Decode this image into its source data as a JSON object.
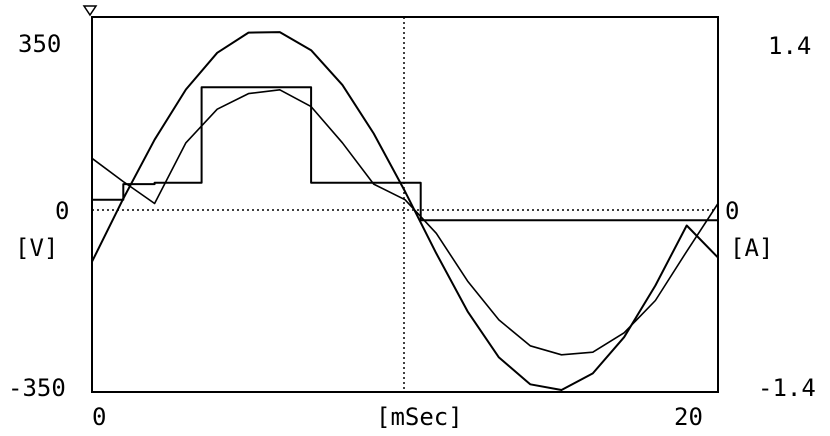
{
  "chart_data": {
    "type": "line",
    "xlabel": "[mSec]",
    "y_left_label": "[V]",
    "y_right_label": "[A]",
    "xlim": [
      0,
      20
    ],
    "ylim_left": [
      -350,
      350
    ],
    "ylim_right": [
      -1.4,
      1.4
    ],
    "x_tick_labels": [
      "0",
      "20"
    ],
    "y_left_tick_labels": [
      "350",
      "0",
      "-350"
    ],
    "y_right_tick_labels": [
      "1.4",
      "0",
      "-1.4"
    ],
    "grid": "dotted zero line and vertical marker at 10 mSec",
    "series": [
      {
        "axis": "left",
        "x": [
          0,
          1,
          2,
          3,
          4,
          5,
          6,
          7,
          8,
          9,
          10,
          11,
          12,
          13,
          14,
          15,
          16,
          17,
          18,
          19,
          20
        ],
        "y": [
          -100,
          22,
          136,
          233,
          304,
          343,
          344,
          309,
          242,
          148,
          36,
          -84,
          -196,
          -285,
          -337,
          -348,
          -316,
          -246,
          -146,
          -30,
          -92
        ]
      },
      {
        "axis": "right",
        "x": [
          0,
          0.5,
          1,
          2,
          3,
          3.5,
          6.5,
          7,
          10,
          10.5,
          11,
          12,
          13,
          14,
          15,
          16,
          17,
          18,
          19,
          20
        ],
        "y": [
          0.08,
          0.08,
          0.2,
          0.21,
          0.21,
          0.95,
          0.95,
          0.21,
          0.21,
          -0.08,
          -0.08,
          -0.08,
          -0.08,
          -0.08,
          -0.08,
          -0.08,
          -0.08,
          -0.08,
          -0.08,
          -0.08
        ]
      },
      {
        "axis": "right",
        "x": [
          0,
          1,
          2,
          3,
          4,
          5,
          6,
          7,
          8,
          9,
          10,
          11,
          12,
          13,
          14,
          15,
          16,
          17,
          18,
          19,
          20
        ],
        "y": [
          0.4,
          0.22,
          0.05,
          0.52,
          0.78,
          0.9,
          0.93,
          0.8,
          0.52,
          0.2,
          0.08,
          -0.18,
          -0.55,
          -0.85,
          -1.05,
          -1.12,
          -1.1,
          -0.95,
          -0.7,
          -0.32,
          0.05
        ]
      }
    ]
  }
}
